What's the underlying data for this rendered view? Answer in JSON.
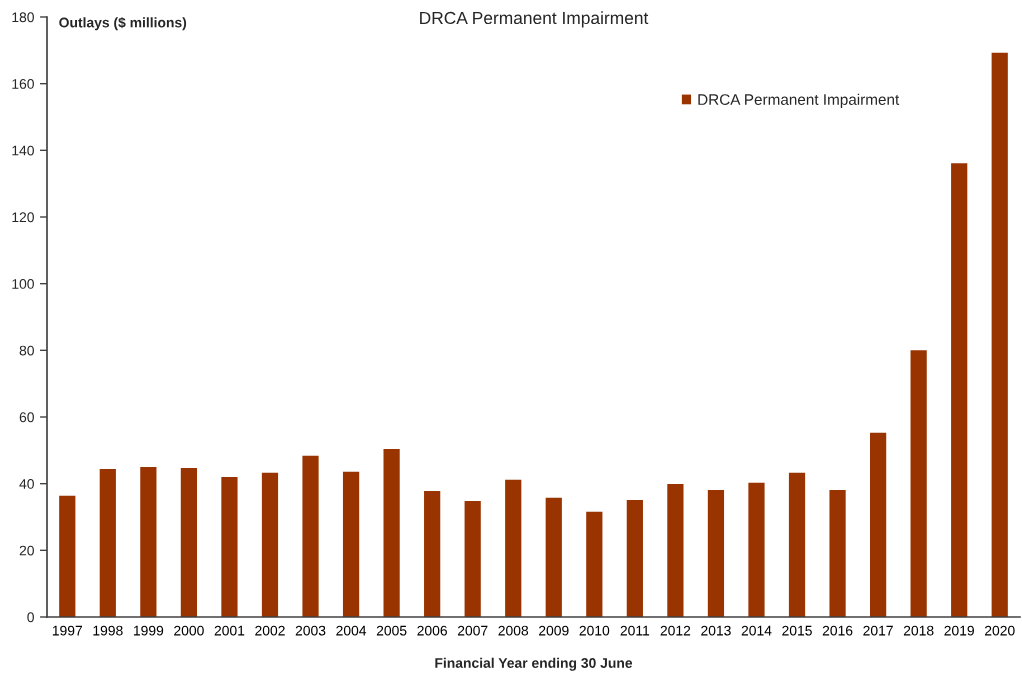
{
  "chart_data": {
    "type": "bar",
    "title": "DRCA Permanent Impairment",
    "xlabel": "Financial Year ending 30 June",
    "ylabel": "Outlays ($ millions)",
    "categories": [
      "1997",
      "1998",
      "1999",
      "2000",
      "2001",
      "2002",
      "2003",
      "2004",
      "2005",
      "2006",
      "2007",
      "2008",
      "2009",
      "2010",
      "2011",
      "2012",
      "2013",
      "2014",
      "2015",
      "2016",
      "2017",
      "2018",
      "2019",
      "2020"
    ],
    "series": [
      {
        "name": "DRCA Permanent Impairment",
        "color": "#993300",
        "values": [
          36.4,
          44.4,
          45.0,
          44.7,
          42.0,
          43.3,
          48.4,
          43.6,
          50.4,
          37.8,
          34.8,
          41.2,
          35.8,
          31.6,
          35.1,
          39.9,
          38.1,
          40.3,
          43.3,
          38.1,
          55.3,
          80.0,
          136.1,
          169.3
        ]
      }
    ],
    "ylim": [
      0,
      180
    ],
    "yticks": [
      0,
      20,
      40,
      60,
      80,
      100,
      120,
      140,
      160,
      180
    ],
    "legend": "top right"
  }
}
